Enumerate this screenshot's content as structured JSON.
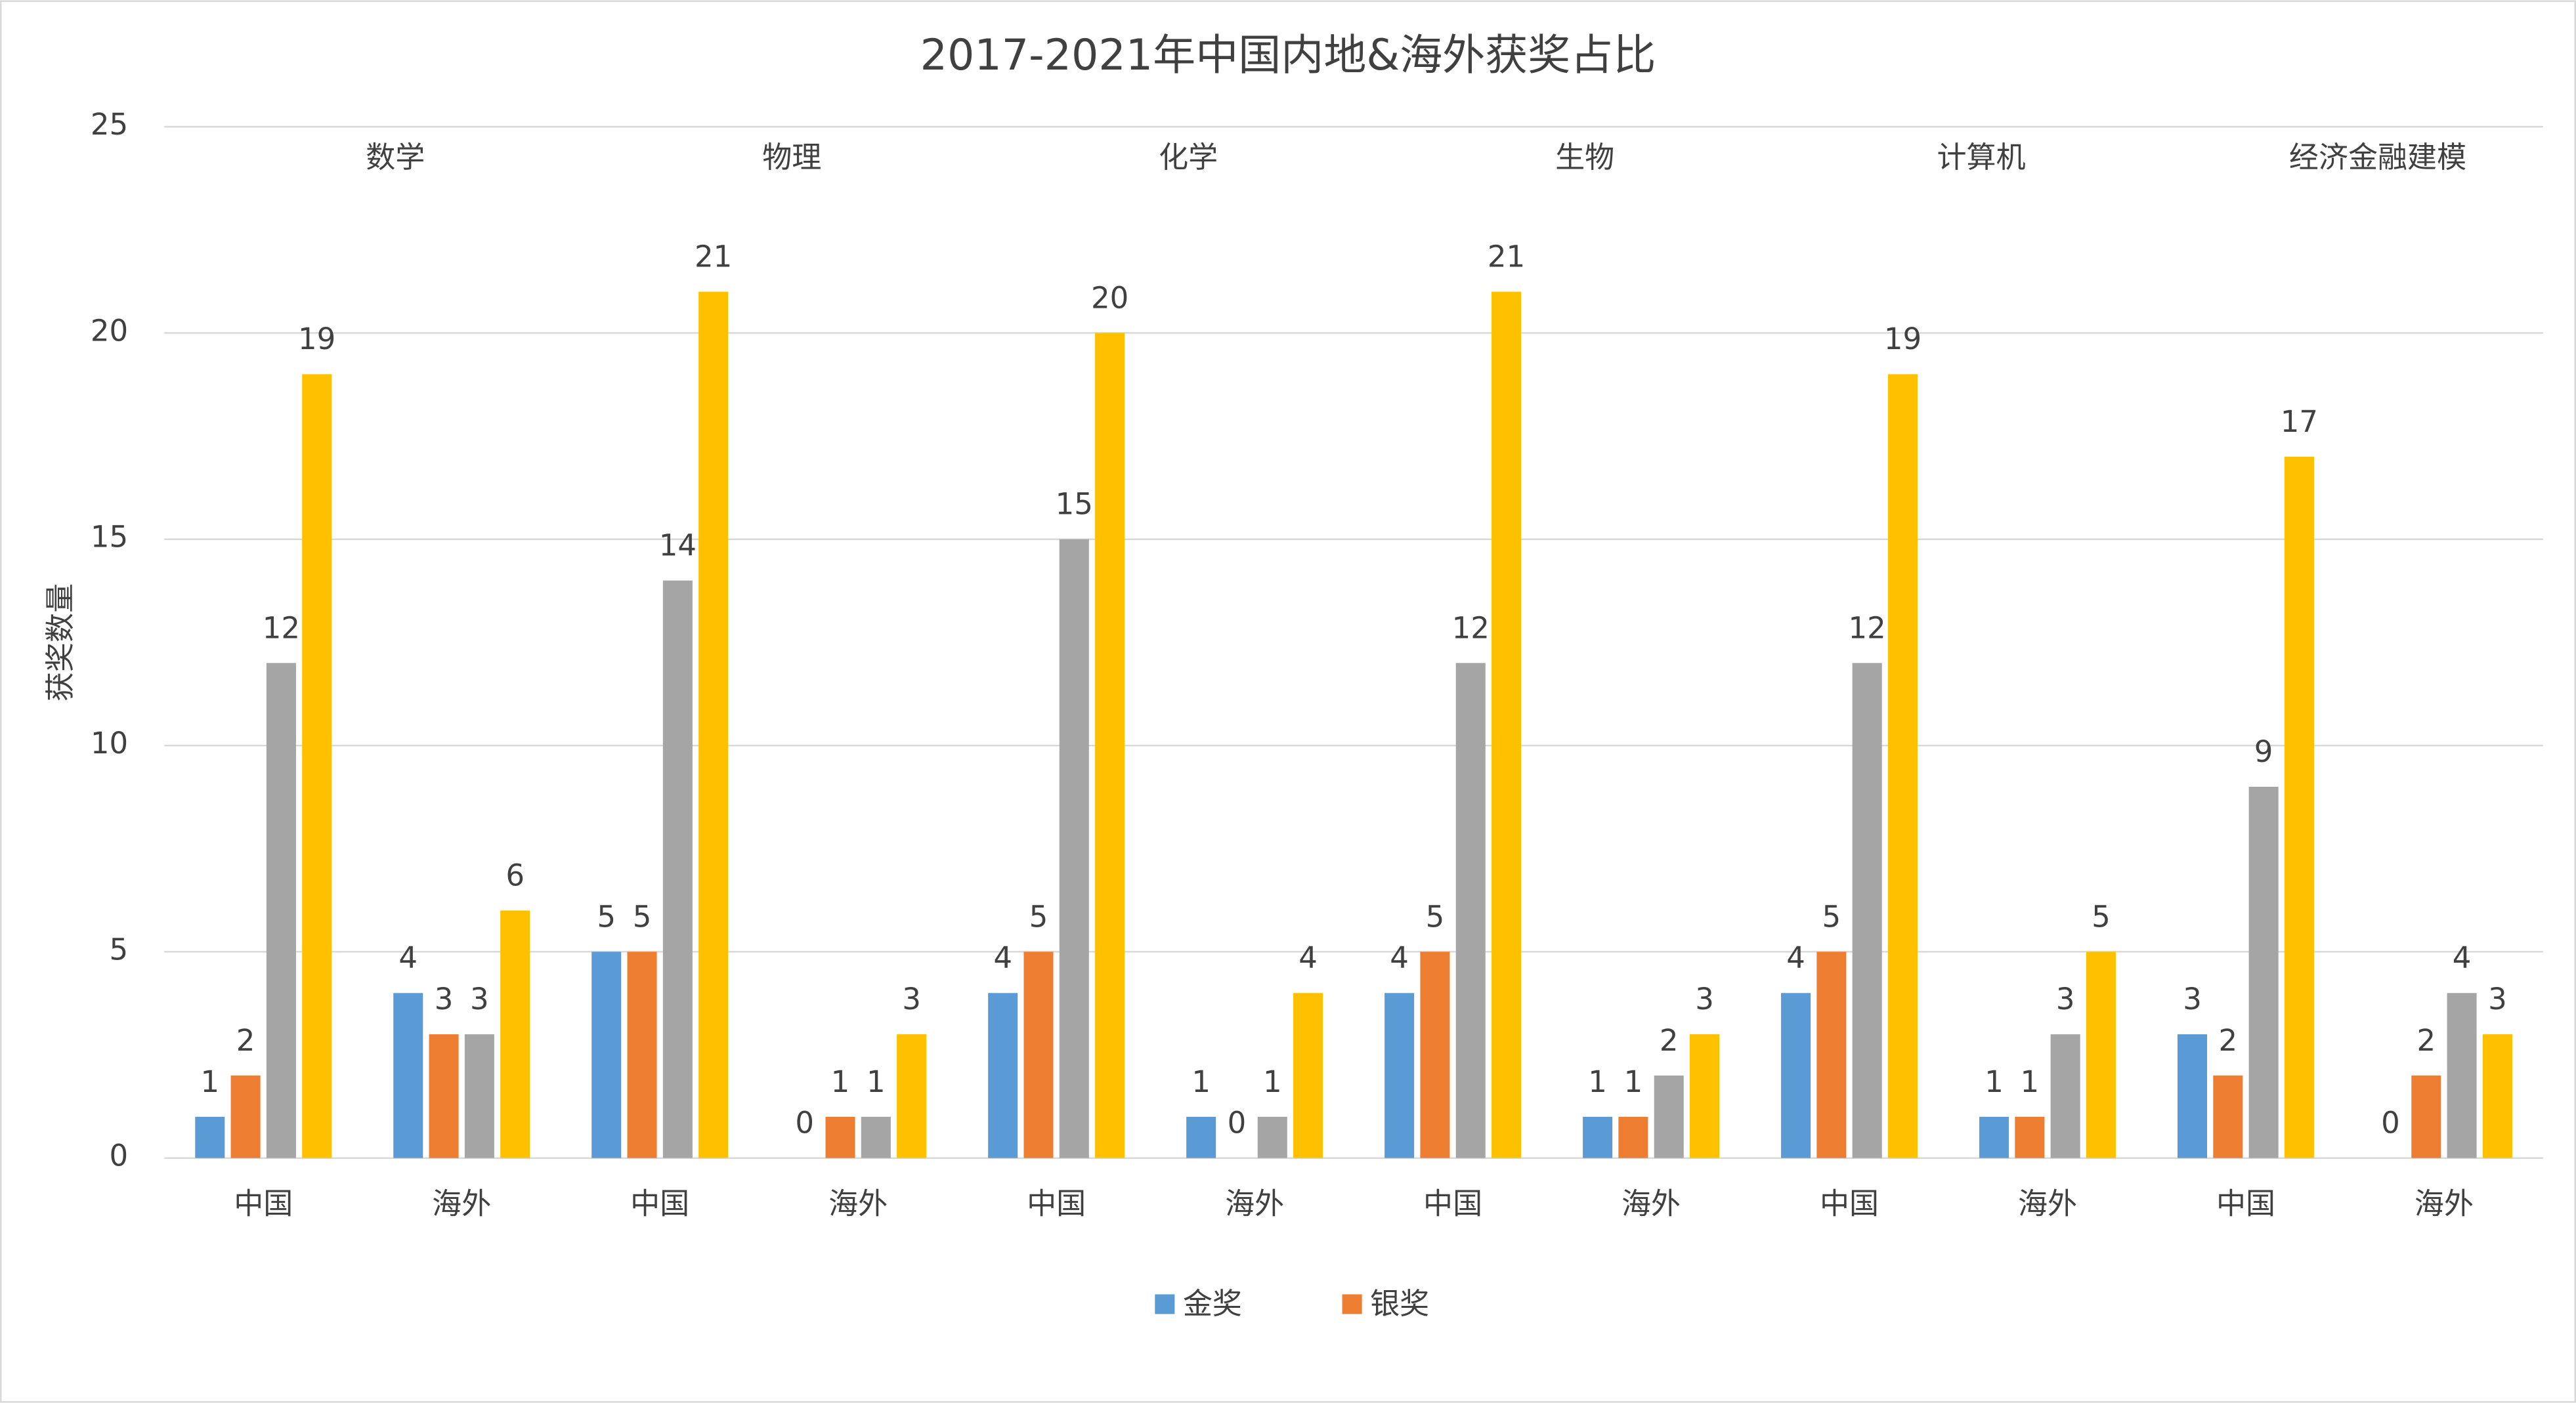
{
  "chart_data": {
    "type": "bar",
    "title": "2017-2021年中国内地&海外获奖占比",
    "y_label": "获奖数量",
    "categories": [
      "中国",
      "海外",
      "中国",
      "海外",
      "中国",
      "海外",
      "中国",
      "海外",
      "中国",
      "海外",
      "中国",
      "海外"
    ],
    "groups": [
      "数学",
      "物理",
      "化学",
      "生物",
      "计算机",
      "经济金融建模"
    ],
    "series": [
      {
        "name": "金奖",
        "color": "#5b9bd5",
        "values": [
          1,
          4,
          5,
          0,
          4,
          1,
          4,
          1,
          4,
          1,
          3,
          0
        ]
      },
      {
        "name": "银奖",
        "color": "#ed7d31",
        "values": [
          2,
          3,
          5,
          1,
          5,
          0,
          5,
          1,
          5,
          1,
          2,
          2
        ]
      },
      {
        "color": "#a5a5a5",
        "values": [
          12,
          3,
          14,
          1,
          15,
          1,
          12,
          2,
          12,
          3,
          9,
          4
        ]
      },
      {
        "color": "#ffc000",
        "values": [
          19,
          6,
          21,
          3,
          20,
          4,
          21,
          3,
          19,
          5,
          17,
          3
        ]
      }
    ],
    "ylim": [
      0,
      25
    ],
    "yticks": [
      0,
      5,
      10,
      15,
      20,
      25
    ],
    "grid": true,
    "legend": "bottom"
  }
}
